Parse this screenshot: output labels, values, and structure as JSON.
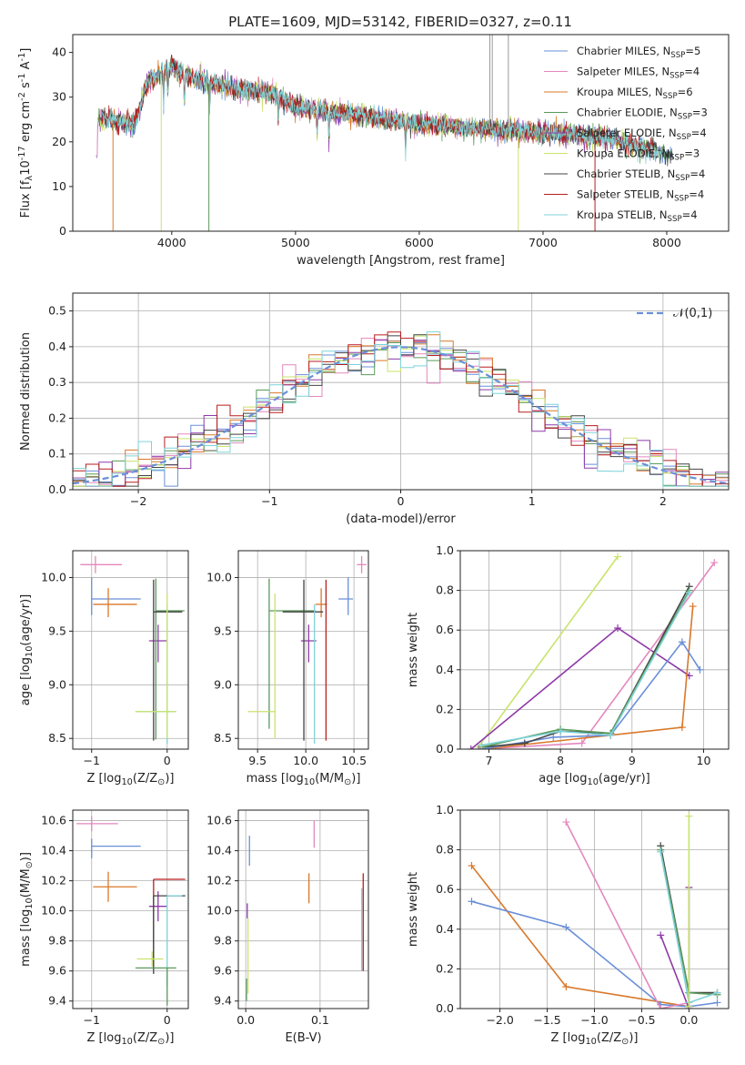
{
  "figure_title": "PLATE=1609, MJD=53142, FIBERID=0327, z=0.11",
  "chart_data": [
    {
      "type": "line",
      "xlabel": "wavelength [Angstrom, rest frame]",
      "ylabel": "Flux [f$_\\lambda$10$^{-17}$ erg cm$^{-2}$ s$^{-1}$ A$^{-1}$]",
      "xlim": [
        3200,
        8500
      ],
      "ylim": [
        0,
        44
      ],
      "xticks": [
        4000,
        5000,
        6000,
        7000,
        8000
      ],
      "yticks": [
        0,
        10,
        20,
        30,
        40
      ],
      "legend_position": "top-right",
      "continuum_points": [
        [
          3400,
          25.5
        ],
        [
          3700,
          24
        ],
        [
          3800,
          33
        ],
        [
          3900,
          35
        ],
        [
          4000,
          37
        ],
        [
          4100,
          35
        ],
        [
          4300,
          33
        ],
        [
          4500,
          32
        ],
        [
          4800,
          31
        ],
        [
          5000,
          28
        ],
        [
          5200,
          27
        ],
        [
          5500,
          26
        ],
        [
          6000,
          24
        ],
        [
          6500,
          23
        ],
        [
          7000,
          22
        ],
        [
          7500,
          21
        ],
        [
          8000,
          17.5
        ],
        [
          8050,
          17
        ]
      ],
      "series": [
        {
          "name": "Chabrier MILES, N$_{SSP}$=5",
          "color": "#6a8fd8"
        },
        {
          "name": "Salpeter MILES, N$_{SSP}$=4",
          "color": "#e487be"
        },
        {
          "name": "Kroupa MILES, N$_{SSP}$=6",
          "color": "#d9782a"
        },
        {
          "name": "Chabrier ELODIE, N$_{SSP}$=3",
          "color": "#5a9a5a"
        },
        {
          "name": "Salpeter ELODIE, N$_{SSP}$=4",
          "color": "#8e3aa8"
        },
        {
          "name": "Kroupa ELODIE, N$_{SSP}$=3",
          "color": "#c8e36a"
        },
        {
          "name": "Chabrier STELIB, N$_{SSP}$=4",
          "color": "#444444"
        },
        {
          "name": "Salpeter STELIB, N$_{SSP}$=4",
          "color": "#b81e1e"
        },
        {
          "name": "Kroupa STELIB, N$_{SSP}$=4",
          "color": "#7fd3d9"
        }
      ]
    },
    {
      "type": "histogram",
      "xlabel": "(data-model)/error",
      "ylabel": "Normed distribution",
      "xlim": [
        -2.5,
        2.5
      ],
      "ylim": [
        0,
        0.55
      ],
      "xticks": [
        -2,
        -1,
        0,
        1,
        2
      ],
      "yticks": [
        0.0,
        0.1,
        0.2,
        0.3,
        0.4,
        0.5
      ],
      "legend": "$\\mathcal{N}(0,1)$",
      "legend_position": "top-right",
      "bin_width": 0.1,
      "series_colors": [
        "#6a8fd8",
        "#e487be",
        "#d9782a",
        "#5a9a5a",
        "#8e3aa8",
        "#c8e36a",
        "#444444",
        "#b81e1e",
        "#7fd3d9"
      ],
      "note_values": "values follow approximately a normal distribution with scatter"
    },
    {
      "type": "errorbar",
      "xlabel": "Z [log$_{10}$($Z/Z_\\odot$)]",
      "ylabel": "age  [log$_{10}$($age/yr$)]",
      "xlim": [
        -1.25,
        0.28
      ],
      "ylim": [
        8.4,
        10.25
      ],
      "xticks": [
        -1,
        0
      ],
      "yticks": [
        8.5,
        9.0,
        9.5,
        10.0
      ],
      "points": [
        {
          "color": "#e487be",
          "x": -0.95,
          "y": 10.12,
          "xerr": [
            0.2,
            0.35
          ],
          "yerr": [
            0.08,
            0.08
          ]
        },
        {
          "color": "#6a8fd8",
          "x": -1.0,
          "y": 9.8,
          "xerr": [
            0.0,
            0.65
          ],
          "yerr": [
            0.15,
            0.2
          ]
        },
        {
          "color": "#d9782a",
          "x": -0.78,
          "y": 9.75,
          "xerr": [
            0.2,
            0.38
          ],
          "yerr": [
            0.12,
            0.15
          ]
        },
        {
          "color": "#8e3aa8",
          "x": -0.12,
          "y": 9.41,
          "xerr": [
            0.12,
            0.12
          ],
          "yerr": [
            0.2,
            0.15
          ]
        },
        {
          "color": "#5a9a5a",
          "x": -0.15,
          "y": 9.69,
          "xerr": [
            0.0,
            0.38
          ],
          "yerr": [
            1.2,
            0.3
          ]
        },
        {
          "color": "#444444",
          "x": -0.18,
          "y": 9.68,
          "xerr": [
            0.0,
            0.38
          ],
          "yerr": [
            1.2,
            0.3
          ]
        },
        {
          "color": "#7fd3d9",
          "x": 0.0,
          "y": 8.75,
          "xerr": [
            0.42,
            0.12
          ],
          "yerr": [
            0.3,
            1.0
          ]
        },
        {
          "color": "#c8e36a",
          "x": 0.0,
          "y": 8.75,
          "xerr": [
            0.42,
            0.12
          ],
          "yerr": [
            0.25,
            1.1
          ]
        }
      ]
    },
    {
      "type": "errorbar",
      "xlabel": "mass [log$_{10}$($M/M_\\odot$)]",
      "ylabel": "",
      "xlim": [
        9.3,
        10.65
      ],
      "ylim": [
        8.4,
        10.25
      ],
      "xticks": [
        9.5,
        10.0,
        10.5
      ],
      "yticks": [
        8.5,
        9.0,
        9.5,
        10.0
      ],
      "points": [
        {
          "color": "#e487be",
          "x": 10.58,
          "y": 10.12,
          "xerr": [
            0.05,
            0.05
          ],
          "yerr": [
            0.08,
            0.08
          ]
        },
        {
          "color": "#6a8fd8",
          "x": 10.44,
          "y": 9.8,
          "xerr": [
            0.1,
            0.05
          ],
          "yerr": [
            0.15,
            0.2
          ]
        },
        {
          "color": "#d9782a",
          "x": 10.16,
          "y": 9.75,
          "xerr": [
            0.06,
            0.06
          ],
          "yerr": [
            0.12,
            0.15
          ]
        },
        {
          "color": "#8e3aa8",
          "x": 10.03,
          "y": 9.41,
          "xerr": [
            0.08,
            0.08
          ],
          "yerr": [
            0.2,
            0.15
          ]
        },
        {
          "color": "#5a9a5a",
          "x": 9.62,
          "y": 9.69,
          "xerr": [
            0.0,
            0.48
          ],
          "yerr": [
            1.1,
            0.3
          ]
        },
        {
          "color": "#444444",
          "x": 9.98,
          "y": 9.68,
          "xerr": [
            0.22,
            0.2
          ],
          "yerr": [
            1.2,
            0.3
          ]
        },
        {
          "color": "#b81e1e",
          "x": 10.21,
          "y": 9.68,
          "xerr": [
            0.0,
            0.0
          ],
          "yerr": [
            1.2,
            0.3
          ]
        },
        {
          "color": "#7fd3d9",
          "x": 10.09,
          "y": 8.75,
          "xerr": [
            0.0,
            0.0
          ],
          "yerr": [
            0.3,
            1.0
          ]
        },
        {
          "color": "#c8e36a",
          "x": 9.68,
          "y": 8.75,
          "xerr": [
            0.28,
            0.0
          ],
          "yerr": [
            0.25,
            1.1
          ]
        }
      ]
    },
    {
      "type": "line",
      "xlabel": "age  [log$_{10}$($age/yr$)]",
      "ylabel": "mass weight",
      "xlim": [
        6.6,
        10.35
      ],
      "ylim": [
        0,
        1
      ],
      "xticks": [
        7,
        8,
        9,
        10
      ],
      "yticks": [
        0.0,
        0.2,
        0.4,
        0.6,
        0.8,
        1.0
      ],
      "series": [
        {
          "color": "#c8e36a",
          "points": [
            [
              6.85,
              0.01
            ],
            [
              8.8,
              0.97
            ]
          ]
        },
        {
          "color": "#8e3aa8",
          "points": [
            [
              6.75,
              0.0
            ],
            [
              8.8,
              0.61
            ],
            [
              9.8,
              0.37
            ]
          ]
        },
        {
          "color": "#e487be",
          "points": [
            [
              6.85,
              0.0
            ],
            [
              8.3,
              0.03
            ],
            [
              10.15,
              0.94
            ]
          ]
        },
        {
          "color": "#d9782a",
          "points": [
            [
              6.9,
              0.0
            ],
            [
              8.7,
              0.07
            ],
            [
              9.7,
              0.11
            ],
            [
              9.85,
              0.72
            ]
          ]
        },
        {
          "color": "#6a8fd8",
          "points": [
            [
              6.9,
              0.0
            ],
            [
              7.9,
              0.06
            ],
            [
              8.7,
              0.07
            ],
            [
              9.7,
              0.54
            ],
            [
              9.95,
              0.4
            ]
          ]
        },
        {
          "color": "#444444",
          "points": [
            [
              6.9,
              0.01
            ],
            [
              7.5,
              0.03
            ],
            [
              8.0,
              0.09
            ],
            [
              8.7,
              0.08
            ],
            [
              9.8,
              0.82
            ]
          ]
        },
        {
          "color": "#5a9a5a",
          "points": [
            [
              6.9,
              0.01
            ],
            [
              8.0,
              0.1
            ],
            [
              8.7,
              0.08
            ],
            [
              9.8,
              0.8
            ]
          ]
        },
        {
          "color": "#7fd3d9",
          "points": [
            [
              6.9,
              0.02
            ],
            [
              8.0,
              0.09
            ],
            [
              8.7,
              0.07
            ],
            [
              9.8,
              0.79
            ]
          ]
        }
      ]
    },
    {
      "type": "errorbar",
      "xlabel": "Z [log$_{10}$($Z/Z_\\odot$)]",
      "ylabel": "mass [log$_{10}$($M/M_\\odot$)]",
      "xlim": [
        -1.25,
        0.28
      ],
      "ylim": [
        9.35,
        10.67
      ],
      "xticks": [
        -1,
        0
      ],
      "yticks": [
        9.4,
        9.6,
        9.8,
        10.0,
        10.2,
        10.4,
        10.6
      ],
      "points": [
        {
          "color": "#e487be",
          "x": -1.0,
          "y": 10.58,
          "xerr": [
            0.2,
            0.35
          ],
          "yerr": [
            0.05,
            0.05
          ]
        },
        {
          "color": "#6a8fd8",
          "x": -1.0,
          "y": 10.43,
          "xerr": [
            0.0,
            0.65
          ],
          "yerr": [
            0.08,
            0.05
          ]
        },
        {
          "color": "#d9782a",
          "x": -0.78,
          "y": 10.16,
          "xerr": [
            0.2,
            0.38
          ],
          "yerr": [
            0.1,
            0.1
          ]
        },
        {
          "color": "#b81e1e",
          "x": -0.18,
          "y": 10.21,
          "xerr": [
            0.0,
            0.42
          ],
          "yerr": [
            0.6,
            0.0
          ]
        },
        {
          "color": "#8e3aa8",
          "x": -0.12,
          "y": 10.03,
          "xerr": [
            0.12,
            0.12
          ],
          "yerr": [
            0.1,
            0.1
          ]
        },
        {
          "color": "#444444",
          "x": -0.18,
          "y": 10.1,
          "xerr": [
            0.0,
            0.42
          ],
          "yerr": [
            0.52,
            0.0
          ]
        },
        {
          "color": "#7fd3d9",
          "x": 0.0,
          "y": 10.1,
          "xerr": [
            0.0,
            0.2
          ],
          "yerr": [
            0.6,
            0.0
          ]
        },
        {
          "color": "#5a9a5a",
          "x": 0.0,
          "y": 9.62,
          "xerr": [
            0.42,
            0.12
          ],
          "yerr": [
            0.25,
            0.0
          ]
        },
        {
          "color": "#c8e36a",
          "x": -0.2,
          "y": 9.68,
          "xerr": [
            0.2,
            0.15
          ],
          "yerr": [
            0.05,
            0.05
          ]
        }
      ]
    },
    {
      "type": "errorbar",
      "xlabel": "E(B-V)",
      "ylabel": "",
      "xlim": [
        -0.01,
        0.165
      ],
      "ylim": [
        9.35,
        10.67
      ],
      "xticks": [
        0.0,
        0.1
      ],
      "yticks": [
        9.4,
        9.6,
        9.8,
        10.0,
        10.2,
        10.4,
        10.6
      ],
      "points": [
        {
          "color": "#e487be",
          "x": 0.092,
          "y": 10.5,
          "xerr": [
            0,
            0
          ],
          "yerr": [
            0.08,
            0.1
          ]
        },
        {
          "color": "#6a8fd8",
          "x": 0.005,
          "y": 10.4,
          "xerr": [
            0,
            0
          ],
          "yerr": [
            0.1,
            0.1
          ]
        },
        {
          "color": "#d9782a",
          "x": 0.085,
          "y": 10.15,
          "xerr": [
            0,
            0
          ],
          "yerr": [
            0.1,
            0.1
          ]
        },
        {
          "color": "#8e3aa8",
          "x": 0.002,
          "y": 10.0,
          "xerr": [
            0,
            0
          ],
          "yerr": [
            0.05,
            0.05
          ]
        },
        {
          "color": "#c8e36a",
          "x": 0.003,
          "y": 9.75,
          "xerr": [
            0,
            0
          ],
          "yerr": [
            0.3,
            0.2
          ]
        },
        {
          "color": "#5a9a5a",
          "x": 0.001,
          "y": 9.5,
          "xerr": [
            0,
            0
          ],
          "yerr": [
            0.1,
            0.05
          ]
        },
        {
          "color": "#b81e1e",
          "x": 0.158,
          "y": 9.9,
          "xerr": [
            0,
            0
          ],
          "yerr": [
            0.3,
            0.35
          ]
        },
        {
          "color": "#7fd3d9",
          "x": 0.156,
          "y": 9.85,
          "xerr": [
            0,
            0
          ],
          "yerr": [
            0.25,
            0.3
          ]
        }
      ]
    },
    {
      "type": "line",
      "xlabel": "Z [log$_{10}$($Z/Z_\\odot$)]",
      "ylabel": "mass weight",
      "xlim": [
        -2.42,
        0.42
      ],
      "ylim": [
        0,
        1
      ],
      "xticks": [
        -2.0,
        -1.5,
        -1.0,
        -0.5,
        0.0
      ],
      "yticks": [
        0.0,
        0.2,
        0.4,
        0.6,
        0.8,
        1.0
      ],
      "series": [
        {
          "color": "#d9782a",
          "points": [
            [
              -2.3,
              0.72
            ],
            [
              -1.3,
              0.11
            ],
            [
              0.0,
              0.01
            ]
          ]
        },
        {
          "color": "#6a8fd8",
          "points": [
            [
              -2.3,
              0.54
            ],
            [
              -1.3,
              0.41
            ],
            [
              -0.3,
              0.02
            ],
            [
              0.0,
              0.01
            ],
            [
              0.3,
              0.03
            ]
          ]
        },
        {
          "color": "#e487be",
          "points": [
            [
              -1.3,
              0.94
            ],
            [
              -0.3,
              0.0
            ],
            [
              0.0,
              0.03
            ]
          ]
        },
        {
          "color": "#8e3aa8",
          "points": [
            [
              -0.3,
              0.37
            ],
            [
              0.0,
              0.0
            ],
            [
              0.0,
              0.61
            ]
          ]
        },
        {
          "color": "#444444",
          "points": [
            [
              -0.3,
              0.82
            ],
            [
              0.0,
              0.08
            ],
            [
              0.3,
              0.08
            ]
          ]
        },
        {
          "color": "#5a9a5a",
          "points": [
            [
              -0.3,
              0.8
            ],
            [
              0.0,
              0.08
            ],
            [
              0.3,
              0.07
            ]
          ]
        },
        {
          "color": "#7fd3d9",
          "points": [
            [
              -0.3,
              0.79
            ],
            [
              0.0,
              0.03
            ],
            [
              0.3,
              0.08
            ]
          ]
        },
        {
          "color": "#c8e36a",
          "points": [
            [
              0.0,
              0.97
            ],
            [
              0.0,
              0.01
            ]
          ]
        }
      ]
    }
  ]
}
